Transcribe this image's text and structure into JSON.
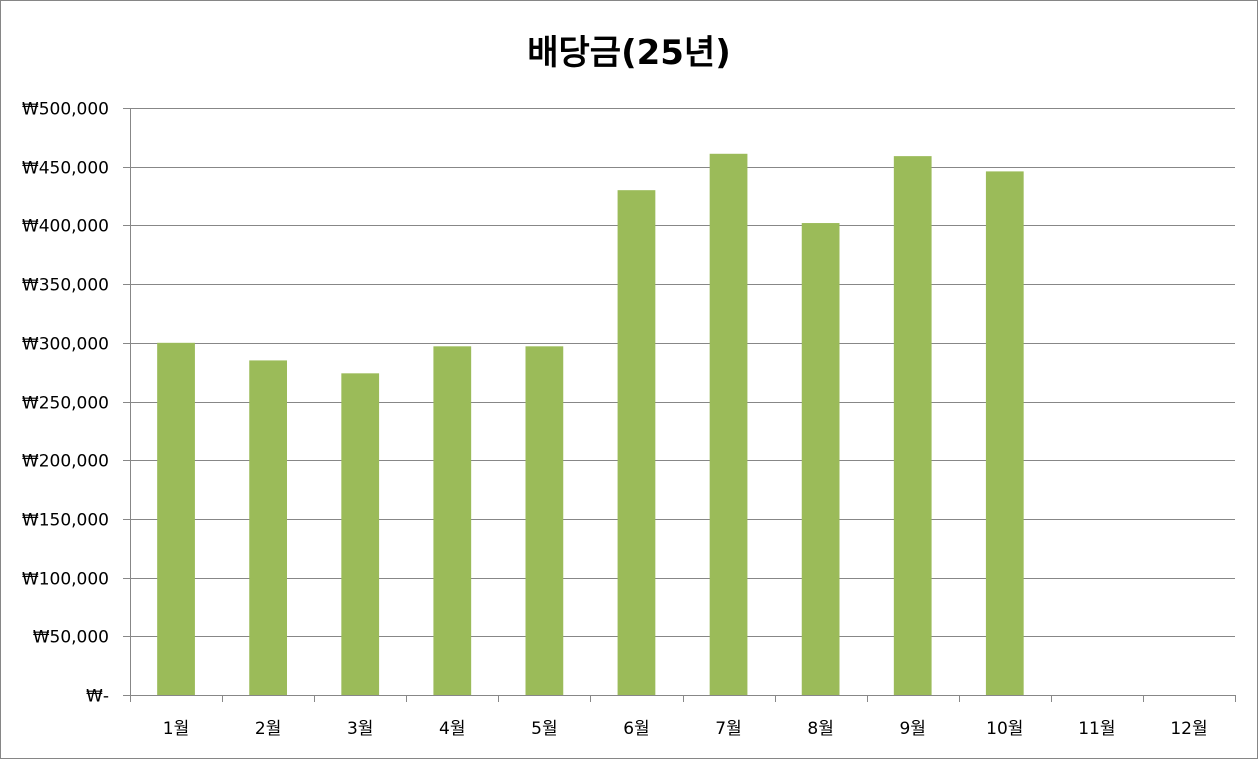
{
  "chart_data": {
    "type": "bar",
    "title": "배당금(25년)",
    "xlabel": "",
    "ylabel": "",
    "categories": [
      "1월",
      "2월",
      "3월",
      "4월",
      "5월",
      "6월",
      "7월",
      "8월",
      "9월",
      "10월",
      "11월",
      "12월"
    ],
    "series": [
      {
        "values": [
          300000,
          285000,
          274000,
          297000,
          297000,
          430000,
          461000,
          402000,
          459000,
          446000,
          null,
          null
        ],
        "color": "#9BBB59"
      }
    ],
    "ylim": [
      0,
      500000
    ],
    "y_ticks": [
      0,
      50000,
      100000,
      150000,
      200000,
      250000,
      300000,
      350000,
      400000,
      450000,
      500000
    ],
    "y_tick_labels": [
      "₩-",
      "₩50,000",
      "₩100,000",
      "₩150,000",
      "₩200,000",
      "₩250,000",
      "₩300,000",
      "₩350,000",
      "₩400,000",
      "₩450,000",
      "₩500,000"
    ],
    "grid": true,
    "legend": "none",
    "colors": {
      "bar": "#9BBB59",
      "grid": "#878787",
      "axis": "#878787",
      "text": "#000000"
    }
  }
}
